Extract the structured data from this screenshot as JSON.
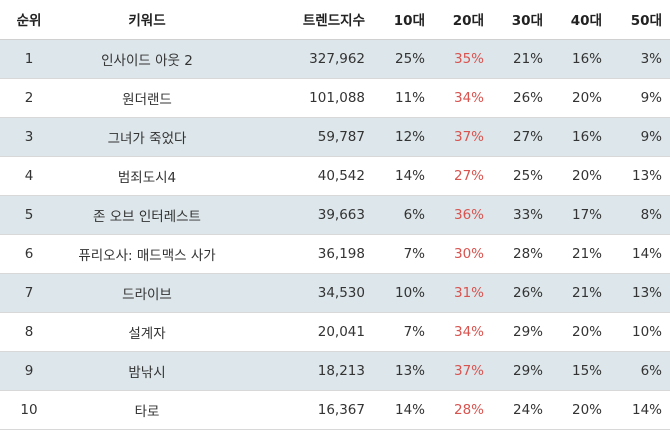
{
  "table": {
    "headers": [
      "순위",
      "키워드",
      "트렌드지수",
      "10대",
      "20대",
      "30대",
      "40대",
      "50대"
    ],
    "rows": [
      {
        "rank": "1",
        "keyword": "인사이드 아웃 2",
        "trend": "327,962",
        "a10": "25%",
        "a20": "35%",
        "a30": "21%",
        "a40": "16%",
        "a50": "3%"
      },
      {
        "rank": "2",
        "keyword": "원더랜드",
        "trend": "101,088",
        "a10": "11%",
        "a20": "34%",
        "a30": "26%",
        "a40": "20%",
        "a50": "9%"
      },
      {
        "rank": "3",
        "keyword": "그녀가 죽었다",
        "trend": "59,787",
        "a10": "12%",
        "a20": "37%",
        "a30": "27%",
        "a40": "16%",
        "a50": "9%"
      },
      {
        "rank": "4",
        "keyword": "범죄도시4",
        "trend": "40,542",
        "a10": "14%",
        "a20": "27%",
        "a30": "25%",
        "a40": "20%",
        "a50": "13%"
      },
      {
        "rank": "5",
        "keyword": "존 오브 인터레스트",
        "trend": "39,663",
        "a10": "6%",
        "a20": "36%",
        "a30": "33%",
        "a40": "17%",
        "a50": "8%"
      },
      {
        "rank": "6",
        "keyword": "퓨리오사: 매드맥스 사가",
        "trend": "36,198",
        "a10": "7%",
        "a20": "30%",
        "a30": "28%",
        "a40": "21%",
        "a50": "14%"
      },
      {
        "rank": "7",
        "keyword": "드라이브",
        "trend": "34,530",
        "a10": "10%",
        "a20": "31%",
        "a30": "26%",
        "a40": "21%",
        "a50": "13%"
      },
      {
        "rank": "8",
        "keyword": "설계자",
        "trend": "20,041",
        "a10": "7%",
        "a20": "34%",
        "a30": "29%",
        "a40": "20%",
        "a50": "10%"
      },
      {
        "rank": "9",
        "keyword": "밤낚시",
        "trend": "18,213",
        "a10": "13%",
        "a20": "37%",
        "a30": "29%",
        "a40": "15%",
        "a50": "6%"
      },
      {
        "rank": "10",
        "keyword": "타로",
        "trend": "16,367",
        "a10": "14%",
        "a20": "28%",
        "a30": "24%",
        "a40": "20%",
        "a50": "14%"
      }
    ],
    "highlight_color": "#d9534f",
    "shaded_row_color": "#dde6ea"
  }
}
